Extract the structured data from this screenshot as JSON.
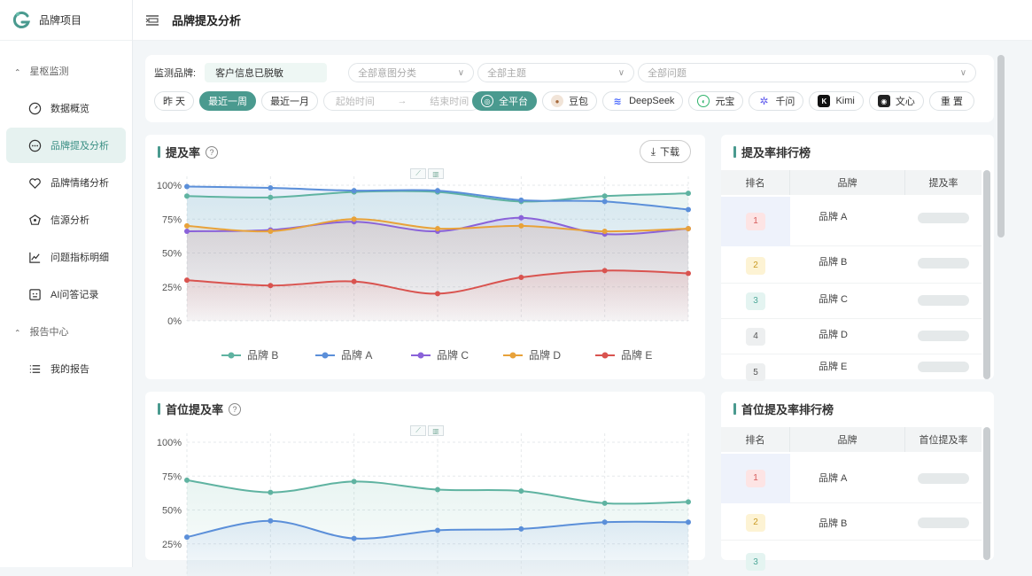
{
  "app": {
    "title": "品牌项目"
  },
  "sidebar": {
    "groups": [
      {
        "label": "星枢监测",
        "items": [
          {
            "label": "数据概览",
            "icon": "gauge-icon"
          },
          {
            "label": "品牌提及分析",
            "icon": "chat-icon",
            "active": true
          },
          {
            "label": "品牌情绪分析",
            "icon": "heart-icon"
          },
          {
            "label": "信源分析",
            "icon": "source-icon"
          },
          {
            "label": "问题指标明细",
            "icon": "line-chart-icon"
          },
          {
            "label": "AI问答记录",
            "icon": "bot-icon"
          }
        ]
      },
      {
        "label": "报告中心",
        "items": [
          {
            "label": "我的报告",
            "icon": "list-icon"
          }
        ]
      }
    ]
  },
  "header": {
    "title": "品牌提及分析"
  },
  "filters": {
    "brand_label": "监测品牌:",
    "brand_value": "客户信息已脱敏",
    "intent_placeholder": "全部意图分类",
    "topic_placeholder": "全部主题",
    "question_placeholder": "全部问题",
    "date_buttons": [
      "昨 天",
      "最近一周",
      "最近一月"
    ],
    "active_date": "最近一周",
    "start_placeholder": "起始时间",
    "range_arrow": "→",
    "end_placeholder": "结束时间",
    "platforms": [
      {
        "label": "全平台",
        "active": true
      },
      {
        "label": "豆包"
      },
      {
        "label": "DeepSeek"
      },
      {
        "label": "元宝"
      },
      {
        "label": "千问"
      },
      {
        "label": "Kimi"
      },
      {
        "label": "文心"
      }
    ],
    "reset_label": "重 置"
  },
  "mention_card": {
    "title": "提及率",
    "download_label": "下载",
    "help": "?"
  },
  "first_card": {
    "title": "首位提及率",
    "help": "?"
  },
  "rank1": {
    "title": "提及率排行榜",
    "headers": [
      "排名",
      "品牌",
      "提及率"
    ],
    "rows": [
      {
        "rank": "1",
        "brand": "品牌 A"
      },
      {
        "rank": "2",
        "brand": "品牌 B"
      },
      {
        "rank": "3",
        "brand": "品牌 C"
      },
      {
        "rank": "4",
        "brand": "品牌 D"
      },
      {
        "rank": "5",
        "brand": "品牌 E"
      }
    ]
  },
  "rank2": {
    "title": "首位提及率排行榜",
    "headers": [
      "排名",
      "品牌",
      "首位提及率"
    ],
    "rows": [
      {
        "rank": "1",
        "brand": "品牌 A"
      },
      {
        "rank": "2",
        "brand": "品牌 B"
      },
      {
        "rank": "3",
        "brand": ""
      }
    ]
  },
  "chart_data": [
    {
      "type": "line",
      "title": "提及率",
      "yticks": [
        "100%",
        "75%",
        "50%",
        "25%",
        "0%"
      ],
      "ylim": [
        0,
        100
      ],
      "grid": true,
      "legend": "bottom",
      "series": [
        {
          "name": "品牌 B",
          "color": "#5fb3a1",
          "values": [
            92,
            91,
            95,
            95,
            88,
            92,
            94
          ]
        },
        {
          "name": "品牌 A",
          "color": "#5b8fd9",
          "values": [
            99,
            98,
            96,
            96,
            89,
            88,
            82
          ]
        },
        {
          "name": "品牌 C",
          "color": "#8a62d9",
          "values": [
            66,
            67,
            73,
            66,
            76,
            64,
            68
          ]
        },
        {
          "name": "品牌 D",
          "color": "#e8a23a",
          "values": [
            70,
            66,
            75,
            68,
            70,
            66,
            68
          ]
        },
        {
          "name": "品牌 E",
          "color": "#d9534f",
          "values": [
            30,
            26,
            29,
            20,
            32,
            37,
            35
          ]
        }
      ]
    },
    {
      "type": "line",
      "title": "首位提及率",
      "yticks": [
        "100%",
        "75%",
        "50%",
        "25%"
      ],
      "ylim": [
        0,
        100
      ],
      "grid": true,
      "series": [
        {
          "name": "",
          "color": "#5fb3a1",
          "values": [
            72,
            63,
            71,
            65,
            64,
            55,
            56
          ]
        },
        {
          "name": "",
          "color": "#5b8fd9",
          "values": [
            30,
            42,
            29,
            35,
            36,
            41,
            41
          ]
        }
      ]
    }
  ]
}
